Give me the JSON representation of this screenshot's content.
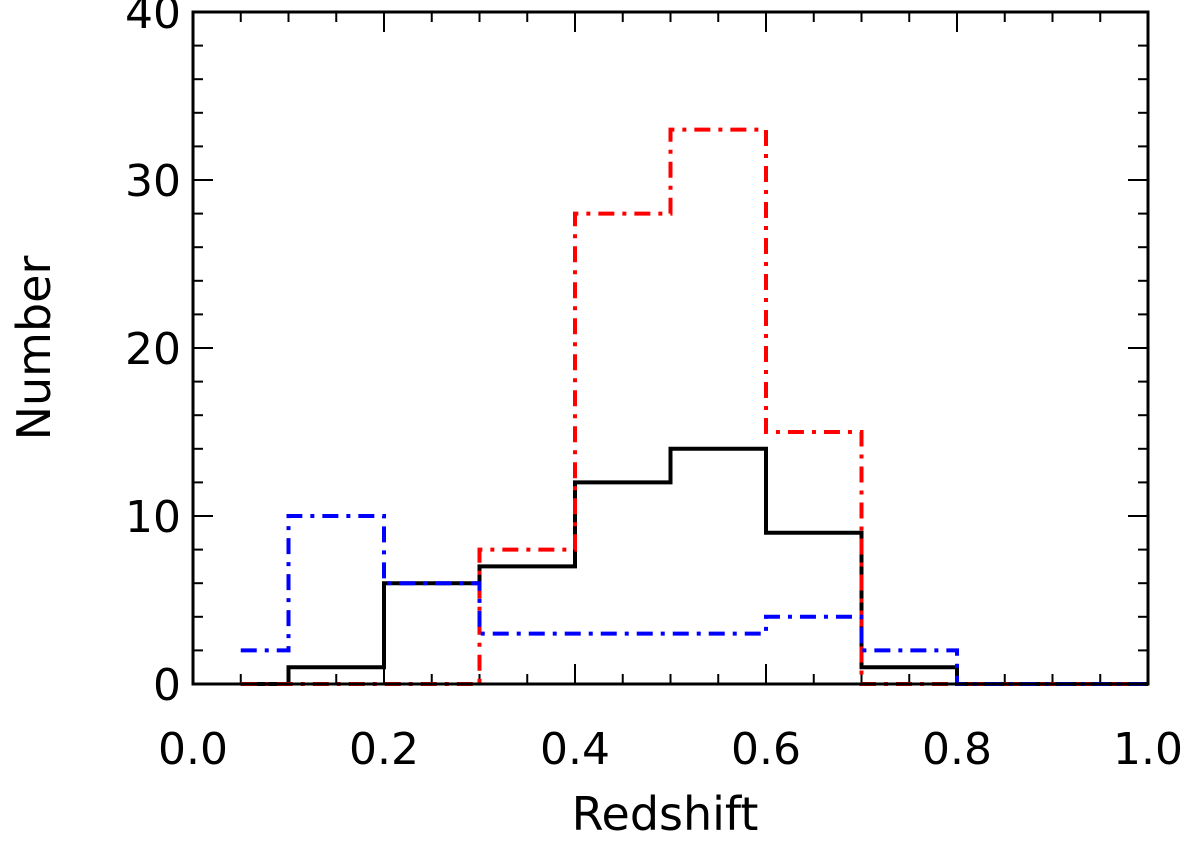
{
  "chart_data": {
    "type": "line",
    "style": "step-histogram",
    "title": "",
    "xlabel": "Redshift",
    "ylabel": "Number",
    "xlim": [
      0.0,
      1.0
    ],
    "ylim": [
      0,
      40
    ],
    "xticks": [
      "0.0",
      "0.2",
      "0.4",
      "0.6",
      "0.8",
      "1.0"
    ],
    "yticks": [
      "0",
      "10",
      "20",
      "30",
      "40"
    ],
    "grid": false,
    "bin_edges": [
      0.05,
      0.1,
      0.2,
      0.3,
      0.4,
      0.5,
      0.6,
      0.7,
      0.8,
      0.9,
      1.0
    ],
    "series": [
      {
        "name": "black-solid",
        "color": "#000000",
        "dash": "solid",
        "values": [
          0,
          1,
          6,
          7,
          12,
          14,
          9,
          1,
          0,
          0
        ]
      },
      {
        "name": "red-dashdot",
        "color": "#ff0000",
        "dash": "dashdot",
        "values": [
          0,
          0,
          0,
          8,
          28,
          33,
          15,
          0,
          0,
          0
        ]
      },
      {
        "name": "blue-dashdot",
        "color": "#0000ff",
        "dash": "dashdot",
        "values": [
          2,
          10,
          6,
          3,
          3,
          3,
          4,
          2,
          0,
          0
        ]
      }
    ]
  }
}
